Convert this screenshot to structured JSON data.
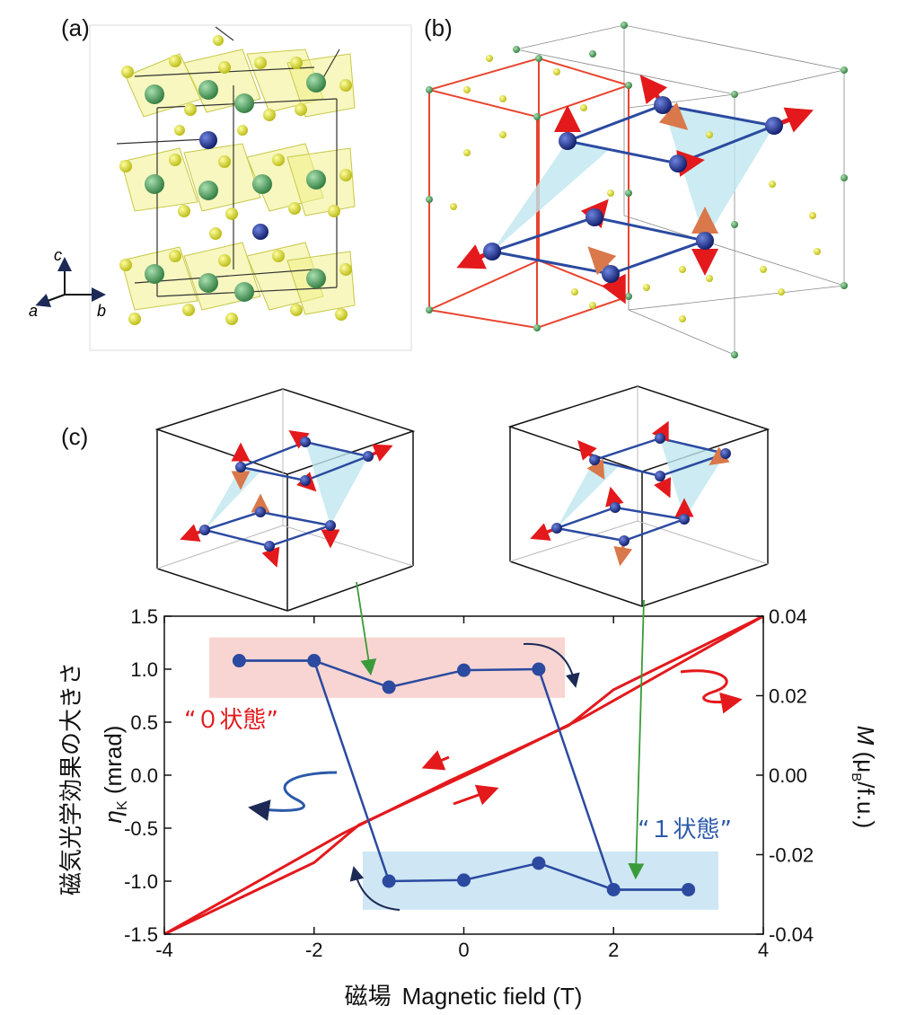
{
  "panels": {
    "a": {
      "label": "(a)",
      "axes": {
        "c": "c",
        "a": "a",
        "b": "b"
      }
    },
    "b": {
      "label": "(b)"
    },
    "c": {
      "label": "(c)"
    }
  },
  "colors": {
    "red_box": "#e8452f",
    "blue_series": "#2b4aa0",
    "red_series": "#e3191c",
    "pink_band": "#f8d5d2",
    "blue_band": "#cfe6f4",
    "green_arrow": "#3a9b3a",
    "sulfur": "#e0e033",
    "green_atom": "#5aa868",
    "blue_atom": "#1d2f8a",
    "triangle": "#bfe6ef"
  },
  "chart_data": {
    "type": "line",
    "xlabel_ja": "磁場",
    "xlabel_en": "Magnetic field (T)",
    "ylabel_left_ja": "磁気光学効果の大きさ",
    "ylabel_left_sym": "η",
    "ylabel_left_sub": "K",
    "ylabel_left_unit": " (mrad)",
    "ylabel_right_sym": "M",
    "ylabel_right_unit_pre": " (μ",
    "ylabel_right_unit_sub": "B",
    "ylabel_right_unit_post": "/f.u.)",
    "xlim": [
      -4,
      4
    ],
    "ylim_left": [
      -1.5,
      1.5
    ],
    "ylim_right": [
      -0.04,
      0.04
    ],
    "xticks": [
      -4,
      -2,
      0,
      2,
      4
    ],
    "xtick_labels": [
      "-4",
      "-2",
      "0",
      "2",
      "4"
    ],
    "yticks_left": [
      -1.5,
      -1.0,
      -0.5,
      0.0,
      0.5,
      1.0,
      1.5
    ],
    "ytick_labels_left": [
      "-1.5",
      "-1.0",
      "-0.5",
      "0.0",
      "0.5",
      "1.0",
      "1.5"
    ],
    "yticks_right": [
      -0.04,
      -0.02,
      0.0,
      0.02,
      0.04
    ],
    "ytick_labels_right": [
      "-0.04",
      "-0.02",
      "0.00",
      "0.02",
      "0.04"
    ],
    "kerr_points": [
      {
        "x": -3,
        "y": 1.08
      },
      {
        "x": -2,
        "y": 1.08
      },
      {
        "x": -1,
        "y": 0.83
      },
      {
        "x": 0,
        "y": 0.99
      },
      {
        "x": 1,
        "y": 1.0
      },
      {
        "x": 2,
        "y": -1.08
      },
      {
        "x": 3,
        "y": -1.08
      },
      {
        "x": -1,
        "y": -1.0
      },
      {
        "x": 0,
        "y": -0.99
      },
      {
        "x": 1,
        "y": -0.83
      }
    ],
    "kerr_path_down": [
      [
        -3,
        1.08
      ],
      [
        -2,
        1.08
      ],
      [
        -1,
        0.83
      ],
      [
        0,
        0.99
      ],
      [
        1,
        1.0
      ],
      [
        2,
        -1.08
      ],
      [
        3,
        -1.08
      ]
    ],
    "kerr_path_up": [
      [
        3,
        -1.08
      ],
      [
        2,
        -1.08
      ],
      [
        1,
        -0.83
      ],
      [
        0,
        -0.99
      ],
      [
        -1,
        -1.0
      ],
      [
        -2,
        1.08
      ],
      [
        -3,
        1.08
      ]
    ],
    "magnetization_down": [
      [
        4,
        0.04
      ],
      [
        2,
        0.0215
      ],
      [
        1.4,
        0.0125
      ],
      [
        0.2,
        0.002
      ],
      [
        -0.2,
        -0.0015
      ],
      [
        -1.6,
        -0.0145
      ],
      [
        -4,
        -0.04
      ]
    ],
    "magnetization_up": [
      [
        -4,
        -0.04
      ],
      [
        -2,
        -0.022
      ],
      [
        -1.4,
        -0.0125
      ],
      [
        -0.2,
        -0.002
      ],
      [
        0.2,
        0.0015
      ],
      [
        1.6,
        0.0145
      ],
      [
        4,
        0.04
      ]
    ],
    "state0_label": "“０状態”",
    "state1_label": "“１状態”"
  }
}
